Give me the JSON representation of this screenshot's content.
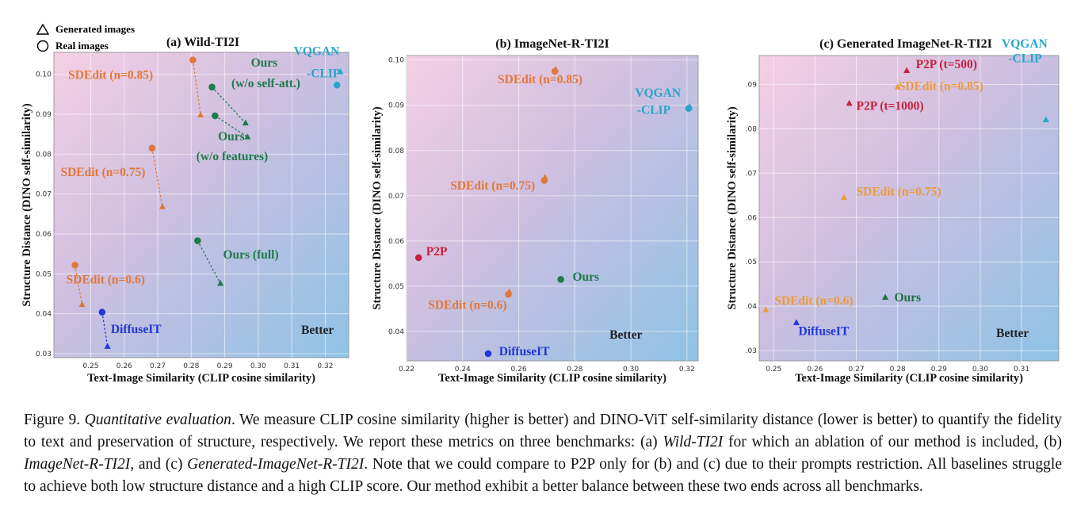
{
  "legend": {
    "generated_label": "Generated images",
    "real_label": "Real images"
  },
  "colors": {
    "sdedit_a": "#e0783a",
    "sdedit_c": "#ee9a3a",
    "ours": "#1f7a4c",
    "ours_c": "#1f6f45",
    "vqgan": "#2aa5c9",
    "diffuseit": "#2236d6",
    "p2p": "#c8203c"
  },
  "chart_data": [
    {
      "type": "scatter",
      "title": "(a) Wild-TI2I",
      "xlabel": "Text-Image Similarity (CLIP cosine similarity)",
      "ylabel": "Structure Distance (DINO self-similarity)",
      "xlim": [
        0.239,
        0.327
      ],
      "ylim": [
        0.029,
        0.1055
      ],
      "xticks": [
        "0.25",
        "0.26",
        "0.27",
        "0.28",
        "0.29",
        "0.30",
        "0.31",
        "0.32"
      ],
      "yticks": [
        "0.03",
        "0.04",
        "0.05",
        "0.06",
        "0.07",
        "0.08",
        "0.09",
        "0.10"
      ],
      "grid": true,
      "better_label": "Better",
      "points": [
        {
          "series": "sdedit",
          "marker": "circle",
          "x": 0.2805,
          "y": 0.1036
        },
        {
          "series": "sdedit",
          "marker": "triangle",
          "x": 0.2828,
          "y": 0.0898
        },
        {
          "series": "sdedit",
          "marker": "circle",
          "x": 0.2683,
          "y": 0.0815
        },
        {
          "series": "sdedit",
          "marker": "triangle",
          "x": 0.2714,
          "y": 0.0668
        },
        {
          "series": "sdedit",
          "marker": "circle",
          "x": 0.2453,
          "y": 0.0522
        },
        {
          "series": "sdedit",
          "marker": "triangle",
          "x": 0.2474,
          "y": 0.0423
        },
        {
          "series": "ours",
          "marker": "circle",
          "x": 0.2862,
          "y": 0.0968
        },
        {
          "series": "ours",
          "marker": "triangle",
          "x": 0.2962,
          "y": 0.0878
        },
        {
          "series": "ours",
          "marker": "circle",
          "x": 0.2871,
          "y": 0.0896
        },
        {
          "series": "ours",
          "marker": "triangle",
          "x": 0.2968,
          "y": 0.0843
        },
        {
          "series": "ours",
          "marker": "circle",
          "x": 0.2819,
          "y": 0.0583
        },
        {
          "series": "ours",
          "marker": "triangle",
          "x": 0.2887,
          "y": 0.0476
        },
        {
          "series": "vqgan",
          "marker": "circle",
          "x": 0.3235,
          "y": 0.0973
        },
        {
          "series": "vqgan",
          "marker": "triangle",
          "x": 0.3245,
          "y": 0.1006
        },
        {
          "series": "diffuseit",
          "marker": "circle",
          "x": 0.2534,
          "y": 0.0404
        },
        {
          "series": "diffuseit",
          "marker": "triangle",
          "x": 0.255,
          "y": 0.0318
        }
      ],
      "pairs": [
        [
          0,
          1
        ],
        [
          2,
          3
        ],
        [
          4,
          5
        ],
        [
          6,
          7
        ],
        [
          8,
          9
        ],
        [
          10,
          11
        ],
        [
          14,
          15
        ]
      ],
      "labels": [
        {
          "text": "SDEdit (n=0.85)",
          "series": "sdedit",
          "x": 0.2433,
          "y": 0.0988
        },
        {
          "text": "SDEdit (n=0.75)",
          "series": "sdedit",
          "x": 0.241,
          "y": 0.0745
        },
        {
          "text": "SDEdit (n=0.6)",
          "series": "sdedit",
          "x": 0.2427,
          "y": 0.0476
        },
        {
          "text": "Ours",
          "series": "ours",
          "x": 0.2978,
          "y": 0.1019
        },
        {
          "text": "(w/o self-att.)",
          "series": "ours",
          "x": 0.292,
          "y": 0.0968
        },
        {
          "text": "Ours",
          "series": "ours",
          "x": 0.288,
          "y": 0.0834
        },
        {
          "text": "(w/o features)",
          "series": "ours",
          "x": 0.2815,
          "y": 0.0785
        },
        {
          "text": "Ours (full)",
          "series": "ours",
          "x": 0.2895,
          "y": 0.0538
        },
        {
          "text": "VQGAN",
          "series": "vqgan",
          "x": 0.3106,
          "y": 0.1048
        },
        {
          "text": "-CLIP",
          "series": "vqgan",
          "x": 0.3145,
          "y": 0.0992
        },
        {
          "text": "DiffuseIT",
          "series": "diffuseit",
          "x": 0.256,
          "y": 0.0352
        }
      ]
    },
    {
      "type": "scatter",
      "title": "(b) ImageNet-R-TI2I",
      "xlabel": "Text-Image Similarity (CLIP cosine similarity)",
      "ylabel": "Structure Distance (DINO self-similarity)",
      "xlim": [
        0.22,
        0.324
      ],
      "ylim": [
        0.0335,
        0.101
      ],
      "xticks": [
        "0.22",
        "0.24",
        "0.26",
        "0.28",
        "0.30",
        "0.32"
      ],
      "yticks": [
        "0.04",
        "0.05",
        "0.06",
        "0.07",
        "0.08",
        "0.09",
        "0.10"
      ],
      "grid": true,
      "better_label": "Better",
      "points": [
        {
          "series": "sdedit",
          "marker": "circle",
          "x": 0.2729,
          "y": 0.0975
        },
        {
          "series": "sdedit",
          "marker": "triangle",
          "x": 0.2732,
          "y": 0.0979
        },
        {
          "series": "sdedit",
          "marker": "circle",
          "x": 0.2691,
          "y": 0.0734
        },
        {
          "series": "sdedit",
          "marker": "triangle",
          "x": 0.2694,
          "y": 0.074
        },
        {
          "series": "sdedit",
          "marker": "circle",
          "x": 0.2563,
          "y": 0.0482
        },
        {
          "series": "sdedit",
          "marker": "triangle",
          "x": 0.2566,
          "y": 0.0488
        },
        {
          "series": "vqgan",
          "marker": "circle",
          "x": 0.3206,
          "y": 0.0893
        },
        {
          "series": "vqgan",
          "marker": "triangle",
          "x": 0.321,
          "y": 0.0897
        },
        {
          "series": "p2p",
          "marker": "circle",
          "x": 0.2243,
          "y": 0.0563
        },
        {
          "series": "ours",
          "marker": "circle",
          "x": 0.275,
          "y": 0.0515
        },
        {
          "series": "diffuseit",
          "marker": "circle",
          "x": 0.2491,
          "y": 0.0351
        }
      ],
      "pairs": [],
      "labels": [
        {
          "text": "SDEdit (n=0.85)",
          "series": "sdedit",
          "x": 0.2525,
          "y": 0.0949
        },
        {
          "text": "VQGAN",
          "series": "vqgan",
          "x": 0.3015,
          "y": 0.0919
        },
        {
          "text": "-CLIP",
          "series": "vqgan",
          "x": 0.3022,
          "y": 0.0881
        },
        {
          "text": "SDEdit (n=0.75)",
          "series": "sdedit",
          "x": 0.2356,
          "y": 0.0714
        },
        {
          "text": "P2P",
          "series": "p2p",
          "x": 0.227,
          "y": 0.0568
        },
        {
          "text": "Ours",
          "series": "ours",
          "x": 0.2792,
          "y": 0.0512
        },
        {
          "text": "SDEdit (n=0.6)",
          "series": "sdedit",
          "x": 0.2277,
          "y": 0.045
        },
        {
          "text": "DiffuseIT",
          "series": "diffuseit",
          "x": 0.253,
          "y": 0.0347
        },
        {
          "text": "Better",
          "series": "better",
          "x": 0.2924,
          "y": 0.0384
        }
      ]
    },
    {
      "type": "scatter",
      "title": "(c) Generated ImageNet-R-TI2I",
      "xlabel": "Text-Image Similarity (CLIP cosine similarity)",
      "ylabel": "Structure Distance (DINO self-similarity)",
      "xlim": [
        0.2465,
        0.319
      ],
      "ylim": [
        0.0277,
        0.0965
      ],
      "xticks": [
        "0.25",
        "0.26",
        "0.27",
        "0.28",
        "0.29",
        "0.30",
        "0.31"
      ],
      "yticks": [
        ".03",
        ".04",
        ".05",
        ".06",
        ".07",
        ".08",
        ".09"
      ],
      "grid": true,
      "better_label": "Better",
      "points": [
        {
          "series": "p2p",
          "marker": "triangle",
          "x": 0.2822,
          "y": 0.0931
        },
        {
          "series": "p2p",
          "marker": "triangle",
          "x": 0.2683,
          "y": 0.0857
        },
        {
          "series": "sdedit_c",
          "marker": "triangle",
          "x": 0.28,
          "y": 0.0894
        },
        {
          "series": "sdedit_c",
          "marker": "triangle",
          "x": 0.267,
          "y": 0.0645
        },
        {
          "series": "sdedit_c",
          "marker": "triangle",
          "x": 0.2481,
          "y": 0.0392
        },
        {
          "series": "vqgan",
          "marker": "triangle",
          "x": 0.3159,
          "y": 0.082
        },
        {
          "series": "ours_c",
          "marker": "triangle",
          "x": 0.277,
          "y": 0.042
        },
        {
          "series": "diffuseit",
          "marker": "triangle",
          "x": 0.2555,
          "y": 0.0363
        }
      ],
      "pairs": [],
      "labels": [
        {
          "text": "P2P (t=500)",
          "series": "p2p",
          "x": 0.2844,
          "y": 0.0936
        },
        {
          "text": "SDEdit (n=0.85)",
          "series": "sdedit_c",
          "x": 0.2802,
          "y": 0.0887
        },
        {
          "text": "P2P (t=1000)",
          "series": "p2p",
          "x": 0.27,
          "y": 0.0843
        },
        {
          "text": "VQGAN",
          "series": "vqgan",
          "x": 0.3052,
          "y": 0.0983
        },
        {
          "text": "-CLIP",
          "series": "vqgan",
          "x": 0.3068,
          "y": 0.095
        },
        {
          "text": "SDEdit (n=0.75)",
          "series": "sdedit_c",
          "x": 0.27,
          "y": 0.065
        },
        {
          "text": "SDEdit (n=0.6)",
          "series": "sdedit_c",
          "x": 0.2502,
          "y": 0.0404
        },
        {
          "text": "Ours",
          "series": "ours_c",
          "x": 0.2792,
          "y": 0.0411
        },
        {
          "text": "DiffuseIT",
          "series": "diffuseit",
          "x": 0.256,
          "y": 0.0335
        }
      ]
    }
  ],
  "caption": {
    "prefix": "Figure 9. ",
    "title_italic": "Quantitative evaluation",
    "part1": ". We measure CLIP cosine similarity (higher is better) and DINO-ViT self-similarity distance (lower is better) to quantify the fidelity to text and preservation of structure, respectively. We report these metrics on three benchmarks: (a) ",
    "bench_a": "Wild-TI2I",
    "part2": " for which an ablation of our method is included, (b) ",
    "bench_b": "ImageNet-R-TI2I",
    "part3": ", and (c) ",
    "bench_c": "Generated-ImageNet-R-TI2I",
    "part4": ". Note that we could compare to P2P only for (b) and (c) due to their prompts restriction. All baselines struggle to achieve both low structure distance and a high CLIP score. Our method exhibit a better balance between these two ends across all benchmarks."
  }
}
